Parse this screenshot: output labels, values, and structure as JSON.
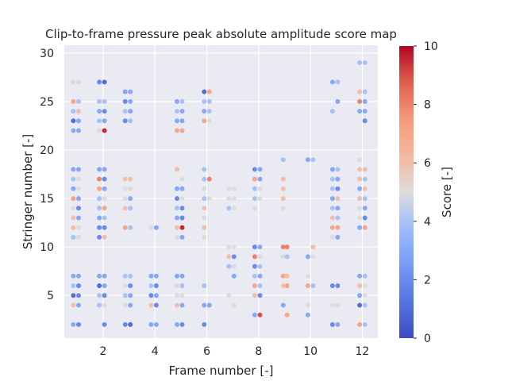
{
  "chart_data": {
    "type": "scatter",
    "title": "Clip-to-frame pressure peak absolute amplitude score map",
    "xlabel": "Frame number [-]",
    "ylabel": "Stringer number [-]",
    "xlim": [
      0.5,
      12.6
    ],
    "ylim": [
      0.6,
      30.8
    ],
    "xticks": [
      2,
      4,
      6,
      8,
      10,
      12
    ],
    "yticks": [
      5,
      10,
      15,
      20,
      25,
      30
    ],
    "grid": true,
    "colorbar": {
      "label": "Score [-]",
      "min": 0,
      "max": 10,
      "ticks": [
        0,
        2,
        4,
        6,
        8,
        10
      ],
      "colormap": "coolwarm"
    },
    "points": [
      [
        0.85,
        27,
        5
      ],
      [
        1.05,
        27,
        5
      ],
      [
        0.85,
        25,
        7
      ],
      [
        1.05,
        25,
        4
      ],
      [
        0.85,
        24,
        4
      ],
      [
        1.05,
        24,
        6
      ],
      [
        0.85,
        23,
        1
      ],
      [
        1.05,
        23,
        3
      ],
      [
        0.85,
        22,
        3
      ],
      [
        1.05,
        22,
        3
      ],
      [
        0.85,
        18,
        3
      ],
      [
        1.05,
        18,
        3
      ],
      [
        0.85,
        17,
        4
      ],
      [
        1.05,
        17,
        5
      ],
      [
        0.85,
        16,
        3
      ],
      [
        1.05,
        16,
        5
      ],
      [
        0.85,
        15,
        7
      ],
      [
        1.05,
        15,
        3
      ],
      [
        0.85,
        14,
        5
      ],
      [
        1.05,
        14,
        2
      ],
      [
        0.85,
        13,
        6
      ],
      [
        1.05,
        13,
        3
      ],
      [
        0.85,
        12,
        6
      ],
      [
        1.05,
        12,
        5
      ],
      [
        0.85,
        11,
        4
      ],
      [
        1.05,
        11,
        5
      ],
      [
        0.85,
        7,
        3
      ],
      [
        1.05,
        7,
        3
      ],
      [
        0.85,
        6,
        4
      ],
      [
        1.05,
        6,
        2
      ],
      [
        0.85,
        5,
        1
      ],
      [
        1.05,
        5,
        2
      ],
      [
        0.85,
        4,
        6
      ],
      [
        1.05,
        4,
        3
      ],
      [
        0.85,
        2,
        3
      ],
      [
        1.05,
        2,
        2
      ],
      [
        1.85,
        27,
        2
      ],
      [
        2.05,
        27,
        1
      ],
      [
        1.85,
        25,
        4
      ],
      [
        2.05,
        25,
        4
      ],
      [
        1.85,
        24,
        3
      ],
      [
        2.05,
        24,
        2
      ],
      [
        1.85,
        23,
        4
      ],
      [
        2.05,
        23,
        3
      ],
      [
        1.85,
        22,
        5
      ],
      [
        2.05,
        22,
        9.5
      ],
      [
        1.85,
        18,
        3
      ],
      [
        2.05,
        18,
        3
      ],
      [
        1.85,
        17,
        8
      ],
      [
        2.05,
        17,
        2
      ],
      [
        1.85,
        16,
        7
      ],
      [
        2.05,
        16,
        3
      ],
      [
        1.85,
        15,
        4
      ],
      [
        2.05,
        15,
        5
      ],
      [
        1.85,
        14,
        4
      ],
      [
        2.05,
        14,
        7
      ],
      [
        1.85,
        13,
        3
      ],
      [
        2.05,
        13,
        4
      ],
      [
        1.85,
        12,
        2
      ],
      [
        2.05,
        12,
        2
      ],
      [
        1.85,
        11,
        2
      ],
      [
        2.05,
        11,
        6
      ],
      [
        1.85,
        7,
        3
      ],
      [
        2.05,
        7,
        3
      ],
      [
        1.85,
        6,
        1
      ],
      [
        2.05,
        6,
        3
      ],
      [
        1.85,
        5,
        4
      ],
      [
        2.05,
        5,
        2
      ],
      [
        1.85,
        4,
        4
      ],
      [
        2.05,
        4,
        5
      ],
      [
        2.05,
        2,
        2
      ],
      [
        2.85,
        26,
        3
      ],
      [
        3.05,
        26,
        3
      ],
      [
        2.85,
        25,
        2
      ],
      [
        3.05,
        25,
        3
      ],
      [
        2.85,
        24,
        4
      ],
      [
        3.05,
        24,
        3
      ],
      [
        2.85,
        23,
        2
      ],
      [
        3.05,
        23,
        4
      ],
      [
        2.85,
        17,
        6
      ],
      [
        3.05,
        17,
        6
      ],
      [
        2.85,
        16,
        5
      ],
      [
        3.05,
        16,
        5
      ],
      [
        2.85,
        15,
        5
      ],
      [
        3.05,
        15,
        3
      ],
      [
        2.85,
        14,
        6
      ],
      [
        3.05,
        14,
        4
      ],
      [
        2.85,
        12,
        7
      ],
      [
        3.05,
        12,
        4
      ],
      [
        2.85,
        7,
        4
      ],
      [
        3.05,
        7,
        4
      ],
      [
        2.85,
        6,
        5
      ],
      [
        3.05,
        6,
        2
      ],
      [
        2.85,
        5,
        4
      ],
      [
        3.05,
        5,
        3
      ],
      [
        2.85,
        4,
        5
      ],
      [
        3.05,
        4,
        3
      ],
      [
        2.85,
        2,
        2
      ],
      [
        3.05,
        2,
        1
      ],
      [
        3.85,
        12,
        5
      ],
      [
        4.05,
        12,
        3
      ],
      [
        3.85,
        7,
        3
      ],
      [
        4.05,
        7,
        3
      ],
      [
        3.85,
        6,
        4
      ],
      [
        4.05,
        6,
        2
      ],
      [
        3.85,
        5,
        2
      ],
      [
        4.05,
        5,
        3
      ],
      [
        3.85,
        4,
        6
      ],
      [
        4.05,
        4,
        2
      ],
      [
        3.85,
        2,
        3
      ],
      [
        4.05,
        2,
        3
      ],
      [
        4.85,
        25,
        3
      ],
      [
        5.05,
        25,
        4
      ],
      [
        4.85,
        24,
        4
      ],
      [
        5.05,
        24,
        3
      ],
      [
        4.85,
        23,
        3
      ],
      [
        5.05,
        23,
        3
      ],
      [
        4.85,
        22,
        7
      ],
      [
        5.05,
        22,
        7
      ],
      [
        4.85,
        18,
        6
      ],
      [
        5.05,
        17,
        5
      ],
      [
        4.85,
        16,
        3
      ],
      [
        5.05,
        16,
        3
      ],
      [
        4.85,
        15,
        2
      ],
      [
        5.05,
        15,
        5
      ],
      [
        4.85,
        14,
        4
      ],
      [
        5.05,
        14,
        2
      ],
      [
        4.85,
        13,
        3
      ],
      [
        5.05,
        13,
        2
      ],
      [
        4.85,
        12,
        6
      ],
      [
        5.05,
        12,
        9.5
      ],
      [
        4.85,
        11,
        5
      ],
      [
        5.05,
        11,
        3
      ],
      [
        4.85,
        7,
        3
      ],
      [
        5.05,
        7,
        3
      ],
      [
        4.85,
        6,
        5
      ],
      [
        5.05,
        6,
        4
      ],
      [
        4.85,
        5,
        5
      ],
      [
        5.05,
        5,
        5
      ],
      [
        4.85,
        4,
        6
      ],
      [
        5.05,
        4,
        3
      ],
      [
        4.85,
        2,
        3
      ],
      [
        5.05,
        2,
        2
      ],
      [
        5.9,
        26,
        1
      ],
      [
        6.1,
        26,
        7
      ],
      [
        5.9,
        25,
        4
      ],
      [
        6.1,
        25,
        4
      ],
      [
        5.9,
        24,
        3
      ],
      [
        6.1,
        24,
        4
      ],
      [
        5.9,
        23,
        7
      ],
      [
        6.1,
        23,
        5
      ],
      [
        5.9,
        18,
        4
      ],
      [
        5.9,
        17,
        4
      ],
      [
        6.1,
        17,
        8
      ],
      [
        5.9,
        16,
        5
      ],
      [
        5.9,
        15,
        4
      ],
      [
        6.1,
        15,
        5
      ],
      [
        5.9,
        14,
        6
      ],
      [
        5.9,
        13,
        5
      ],
      [
        5.9,
        12,
        6
      ],
      [
        5.9,
        11,
        5
      ],
      [
        5.9,
        6,
        4
      ],
      [
        5.9,
        4,
        3
      ],
      [
        6.1,
        4,
        3
      ],
      [
        5.9,
        2,
        2
      ],
      [
        6.85,
        16,
        5
      ],
      [
        7.05,
        16,
        5
      ],
      [
        6.85,
        15,
        5
      ],
      [
        7.05,
        15,
        5
      ],
      [
        6.85,
        14,
        4
      ],
      [
        7.05,
        14,
        5
      ],
      [
        6.85,
        10,
        5
      ],
      [
        7.05,
        10,
        5
      ],
      [
        6.85,
        9,
        6
      ],
      [
        7.05,
        9,
        2
      ],
      [
        6.85,
        8,
        4
      ],
      [
        7.05,
        8,
        5
      ],
      [
        7.05,
        7,
        3
      ],
      [
        6.85,
        5,
        5
      ],
      [
        7.05,
        4,
        5
      ],
      [
        7.85,
        18,
        2
      ],
      [
        8.05,
        18,
        3
      ],
      [
        7.85,
        17,
        7
      ],
      [
        8.05,
        17,
        3
      ],
      [
        7.85,
        16,
        4
      ],
      [
        8.05,
        16,
        5
      ],
      [
        7.85,
        15,
        4
      ],
      [
        8.05,
        15,
        5
      ],
      [
        7.85,
        14,
        5
      ],
      [
        7.85,
        10,
        2
      ],
      [
        8.05,
        10,
        3
      ],
      [
        7.85,
        9,
        8
      ],
      [
        8.05,
        9,
        5
      ],
      [
        7.85,
        8,
        2
      ],
      [
        8.05,
        8,
        4
      ],
      [
        7.85,
        7,
        4
      ],
      [
        8.05,
        7,
        3
      ],
      [
        7.85,
        6,
        7
      ],
      [
        8.05,
        6,
        4
      ],
      [
        7.85,
        5,
        6
      ],
      [
        8.05,
        5,
        2
      ],
      [
        7.85,
        3,
        3
      ],
      [
        8.05,
        3,
        9
      ],
      [
        8.95,
        19,
        4
      ],
      [
        8.95,
        17,
        6
      ],
      [
        8.95,
        16,
        6
      ],
      [
        8.95,
        15,
        6
      ],
      [
        8.95,
        14,
        5
      ],
      [
        8.95,
        10,
        8
      ],
      [
        9.1,
        10,
        8
      ],
      [
        8.95,
        9,
        5
      ],
      [
        9.1,
        9,
        4
      ],
      [
        8.95,
        7,
        7
      ],
      [
        9.1,
        7,
        6
      ],
      [
        8.95,
        6,
        6
      ],
      [
        9.1,
        6,
        7
      ],
      [
        8.95,
        4,
        3
      ],
      [
        9.1,
        3,
        7
      ],
      [
        9.9,
        19,
        3
      ],
      [
        10.1,
        19,
        4
      ],
      [
        9.9,
        9,
        3
      ],
      [
        10.1,
        9,
        5
      ],
      [
        10.1,
        10,
        6
      ],
      [
        9.9,
        7,
        5
      ],
      [
        9.9,
        6,
        7
      ],
      [
        10.1,
        6,
        4
      ],
      [
        9.9,
        4,
        5
      ],
      [
        9.9,
        3,
        3
      ],
      [
        10.85,
        27,
        3
      ],
      [
        11.05,
        27,
        4
      ],
      [
        11.05,
        25,
        3
      ],
      [
        10.85,
        24,
        4
      ],
      [
        10.85,
        18,
        3
      ],
      [
        11.05,
        18,
        4
      ],
      [
        10.85,
        17,
        4
      ],
      [
        11.05,
        17,
        3
      ],
      [
        10.85,
        16,
        4
      ],
      [
        11.05,
        16,
        2
      ],
      [
        10.85,
        15,
        3
      ],
      [
        11.05,
        15,
        6
      ],
      [
        10.85,
        14,
        4
      ],
      [
        11.05,
        14,
        3
      ],
      [
        10.85,
        13,
        6
      ],
      [
        11.05,
        13,
        4
      ],
      [
        10.85,
        12,
        7
      ],
      [
        11.05,
        12,
        7
      ],
      [
        10.85,
        11,
        5
      ],
      [
        11.05,
        11,
        3
      ],
      [
        10.85,
        6,
        2
      ],
      [
        11.05,
        6,
        2
      ],
      [
        10.85,
        4,
        5
      ],
      [
        11.05,
        4,
        5
      ],
      [
        10.85,
        2,
        2
      ],
      [
        11.05,
        2,
        3
      ],
      [
        11.9,
        29,
        4
      ],
      [
        12.1,
        29,
        4
      ],
      [
        11.9,
        26,
        6
      ],
      [
        12.1,
        26,
        4
      ],
      [
        11.9,
        25,
        8
      ],
      [
        12.1,
        25,
        3
      ],
      [
        11.9,
        24,
        3
      ],
      [
        12.1,
        24,
        3
      ],
      [
        12.1,
        23,
        2
      ],
      [
        11.9,
        19,
        5
      ],
      [
        11.9,
        18,
        6
      ],
      [
        12.1,
        18,
        6
      ],
      [
        11.9,
        17,
        6
      ],
      [
        12.1,
        17,
        4
      ],
      [
        11.9,
        16,
        3
      ],
      [
        12.1,
        16,
        6
      ],
      [
        11.9,
        15,
        6
      ],
      [
        12.1,
        15,
        4
      ],
      [
        11.9,
        14,
        5
      ],
      [
        12.1,
        14,
        3
      ],
      [
        11.9,
        13,
        5
      ],
      [
        12.1,
        13,
        2
      ],
      [
        11.9,
        12,
        3
      ],
      [
        12.1,
        12,
        7
      ],
      [
        11.9,
        7,
        3
      ],
      [
        12.1,
        7,
        4
      ],
      [
        11.9,
        6,
        6
      ],
      [
        12.1,
        6,
        5
      ],
      [
        11.9,
        5,
        3
      ],
      [
        12.1,
        5,
        5
      ],
      [
        11.9,
        4,
        1
      ],
      [
        12.1,
        4,
        4
      ],
      [
        11.9,
        2,
        7
      ],
      [
        12.1,
        2,
        4
      ]
    ]
  }
}
